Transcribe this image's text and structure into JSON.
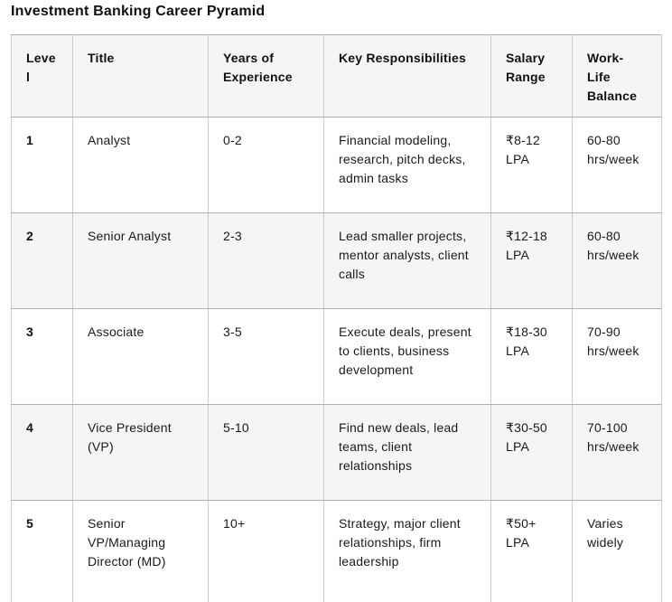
{
  "page_title": "Investment Banking Career Pyramid",
  "table": {
    "columns": [
      {
        "label": "Level"
      },
      {
        "label": "Title"
      },
      {
        "label": "Years of Experience"
      },
      {
        "label": "Key Responsibilities"
      },
      {
        "label": "Salary Range"
      },
      {
        "label": "Work-Life Balance"
      }
    ],
    "rows": [
      {
        "level": "1",
        "title": "Analyst",
        "years": "0-2",
        "responsibilities": "Financial modeling, research, pitch decks, admin tasks",
        "salary": "₹8-12 LPA",
        "balance": "60-80 hrs/week"
      },
      {
        "level": "2",
        "title": "Senior Analyst",
        "years": "2-3",
        "responsibilities": "Lead smaller projects, mentor analysts, client calls",
        "salary": "₹12-18 LPA",
        "balance": "60-80 hrs/week"
      },
      {
        "level": "3",
        "title": "Associate",
        "years": "3-5",
        "responsibilities": "Execute deals, present to clients, business development",
        "salary": "₹18-30 LPA",
        "balance": "70-90 hrs/week"
      },
      {
        "level": "4",
        "title": "Vice President (VP)",
        "years": "5-10",
        "responsibilities": "Find new deals, lead teams, client relationships",
        "salary": "₹30-50 LPA",
        "balance": "70-100 hrs/week"
      },
      {
        "level": "5",
        "title": "Senior VP/Managing Director (MD)",
        "years": "10+",
        "responsibilities": "Strategy, major client relationships, firm leadership",
        "salary": "₹50+ LPA",
        "balance": "Varies widely"
      }
    ]
  },
  "colors": {
    "header_bg": "#f5f5f5",
    "stripe_bg": "#f5f5f5",
    "border_h": "#b0b0b0",
    "border_v": "#cccccc",
    "text": "#1a1a1a",
    "heading": "#111111"
  }
}
